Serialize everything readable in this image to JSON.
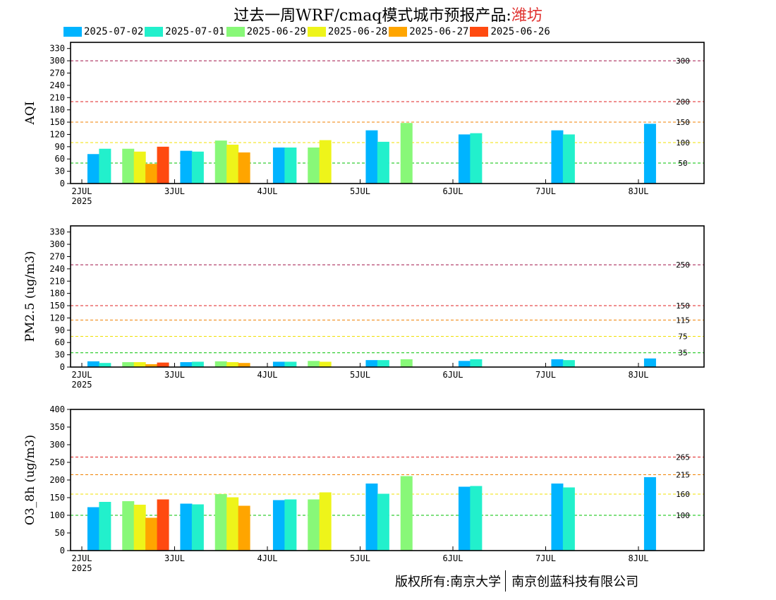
{
  "title": {
    "prefix": "过去一周WRF/cmaq模式城市预报产品:",
    "city": "潍坊"
  },
  "legend": [
    {
      "label": "2025-07-02",
      "color": "#00b4ff"
    },
    {
      "label": "2025-07-01",
      "color": "#22f0cc"
    },
    {
      "label": "2025-06-29",
      "color": "#88f878"
    },
    {
      "label": "2025-06-28",
      "color": "#eef41a"
    },
    {
      "label": "2025-06-27",
      "color": "#ffa500"
    },
    {
      "label": "2025-06-26",
      "color": "#ff4a10"
    }
  ],
  "copyright": {
    "left": "版权所有:南京大学",
    "right": "南京创蓝科技有限公司"
  },
  "chart_data": [
    {
      "type": "bar",
      "ylabel": "AQI",
      "ylim": [
        0,
        345
      ],
      "yticks": [
        0,
        30,
        60,
        90,
        120,
        150,
        180,
        210,
        240,
        270,
        300,
        330
      ],
      "categories": [
        "2JUL",
        "3JUL",
        "4JUL",
        "5JUL",
        "6JUL",
        "7JUL",
        "8JUL"
      ],
      "year_label": "2025",
      "thresholds": [
        {
          "value": 300,
          "label": "300",
          "color": "#a0144a"
        },
        {
          "value": 200,
          "label": "200",
          "color": "#e02020"
        },
        {
          "value": 150,
          "label": "150",
          "color": "#f08000"
        },
        {
          "value": 100,
          "label": "100",
          "color": "#f0e000"
        },
        {
          "value": 50,
          "label": "50",
          "color": "#00c000"
        }
      ],
      "bars": [
        {
          "series": "2025-07-02",
          "x": 0.125,
          "value": 72
        },
        {
          "series": "2025-07-01",
          "x": 0.25,
          "value": 85
        },
        {
          "series": "2025-06-29",
          "x": 0.5,
          "value": 85
        },
        {
          "series": "2025-06-28",
          "x": 0.625,
          "value": 78
        },
        {
          "series": "2025-06-27",
          "x": 0.75,
          "value": 48
        },
        {
          "series": "2025-06-26",
          "x": 0.875,
          "value": 90
        },
        {
          "series": "2025-07-02",
          "x": 1.125,
          "value": 80
        },
        {
          "series": "2025-07-01",
          "x": 1.25,
          "value": 78
        },
        {
          "series": "2025-06-29",
          "x": 1.5,
          "value": 105
        },
        {
          "series": "2025-06-28",
          "x": 1.625,
          "value": 95
        },
        {
          "series": "2025-06-27",
          "x": 1.75,
          "value": 76
        },
        {
          "series": "2025-07-02",
          "x": 2.125,
          "value": 88
        },
        {
          "series": "2025-07-01",
          "x": 2.25,
          "value": 88
        },
        {
          "series": "2025-06-29",
          "x": 2.5,
          "value": 88
        },
        {
          "series": "2025-06-28",
          "x": 2.625,
          "value": 106
        },
        {
          "series": "2025-07-02",
          "x": 3.125,
          "value": 130
        },
        {
          "series": "2025-07-01",
          "x": 3.25,
          "value": 102
        },
        {
          "series": "2025-06-29",
          "x": 3.5,
          "value": 148
        },
        {
          "series": "2025-07-02",
          "x": 4.125,
          "value": 120
        },
        {
          "series": "2025-07-01",
          "x": 4.25,
          "value": 123
        },
        {
          "series": "2025-07-02",
          "x": 5.125,
          "value": 130
        },
        {
          "series": "2025-07-01",
          "x": 5.25,
          "value": 120
        },
        {
          "series": "2025-07-02",
          "x": 6.125,
          "value": 146
        }
      ]
    },
    {
      "type": "bar",
      "ylabel": "PM2.5 (ug/m3)",
      "ylim": [
        0,
        345
      ],
      "yticks": [
        0,
        30,
        60,
        90,
        120,
        150,
        180,
        210,
        240,
        270,
        300,
        330
      ],
      "categories": [
        "2JUL",
        "3JUL",
        "4JUL",
        "5JUL",
        "6JUL",
        "7JUL",
        "8JUL"
      ],
      "year_label": "2025",
      "thresholds": [
        {
          "value": 250,
          "label": "250",
          "color": "#a0144a"
        },
        {
          "value": 150,
          "label": "150",
          "color": "#e02020"
        },
        {
          "value": 115,
          "label": "115",
          "color": "#f08000"
        },
        {
          "value": 75,
          "label": "75",
          "color": "#f0e000"
        },
        {
          "value": 35,
          "label": "35",
          "color": "#00c000"
        }
      ],
      "bars": [
        {
          "series": "2025-07-02",
          "x": 0.125,
          "value": 14
        },
        {
          "series": "2025-07-01",
          "x": 0.25,
          "value": 10
        },
        {
          "series": "2025-06-29",
          "x": 0.5,
          "value": 12
        },
        {
          "series": "2025-06-28",
          "x": 0.625,
          "value": 12
        },
        {
          "series": "2025-06-27",
          "x": 0.75,
          "value": 7
        },
        {
          "series": "2025-06-26",
          "x": 0.875,
          "value": 11
        },
        {
          "series": "2025-07-02",
          "x": 1.125,
          "value": 12
        },
        {
          "series": "2025-07-01",
          "x": 1.25,
          "value": 13
        },
        {
          "series": "2025-06-29",
          "x": 1.5,
          "value": 14
        },
        {
          "series": "2025-06-28",
          "x": 1.625,
          "value": 12
        },
        {
          "series": "2025-06-27",
          "x": 1.75,
          "value": 10
        },
        {
          "series": "2025-07-02",
          "x": 2.125,
          "value": 13
        },
        {
          "series": "2025-07-01",
          "x": 2.25,
          "value": 13
        },
        {
          "series": "2025-06-29",
          "x": 2.5,
          "value": 15
        },
        {
          "series": "2025-06-28",
          "x": 2.625,
          "value": 13
        },
        {
          "series": "2025-07-02",
          "x": 3.125,
          "value": 17
        },
        {
          "series": "2025-07-01",
          "x": 3.25,
          "value": 17
        },
        {
          "series": "2025-06-29",
          "x": 3.5,
          "value": 19
        },
        {
          "series": "2025-07-02",
          "x": 4.125,
          "value": 15
        },
        {
          "series": "2025-07-01",
          "x": 4.25,
          "value": 19
        },
        {
          "series": "2025-07-02",
          "x": 5.125,
          "value": 19
        },
        {
          "series": "2025-07-01",
          "x": 5.25,
          "value": 17
        },
        {
          "series": "2025-07-02",
          "x": 6.125,
          "value": 21
        }
      ]
    },
    {
      "type": "bar",
      "ylabel": "O3_8h (ug/m3)",
      "ylim": [
        0,
        400
      ],
      "yticks": [
        0,
        50,
        100,
        150,
        200,
        250,
        300,
        350,
        400
      ],
      "categories": [
        "2JUL",
        "3JUL",
        "4JUL",
        "5JUL",
        "6JUL",
        "7JUL",
        "8JUL"
      ],
      "year_label": "2025",
      "thresholds": [
        {
          "value": 265,
          "label": "265",
          "color": "#e02020"
        },
        {
          "value": 215,
          "label": "215",
          "color": "#f08000"
        },
        {
          "value": 160,
          "label": "160",
          "color": "#f0e000"
        },
        {
          "value": 100,
          "label": "100",
          "color": "#00c000"
        }
      ],
      "bars": [
        {
          "series": "2025-07-02",
          "x": 0.125,
          "value": 123
        },
        {
          "series": "2025-07-01",
          "x": 0.25,
          "value": 138
        },
        {
          "series": "2025-06-29",
          "x": 0.5,
          "value": 140
        },
        {
          "series": "2025-06-28",
          "x": 0.625,
          "value": 130
        },
        {
          "series": "2025-06-27",
          "x": 0.75,
          "value": 93
        },
        {
          "series": "2025-06-26",
          "x": 0.875,
          "value": 145
        },
        {
          "series": "2025-07-02",
          "x": 1.125,
          "value": 133
        },
        {
          "series": "2025-07-01",
          "x": 1.25,
          "value": 131
        },
        {
          "series": "2025-06-29",
          "x": 1.5,
          "value": 160
        },
        {
          "series": "2025-06-28",
          "x": 1.625,
          "value": 151
        },
        {
          "series": "2025-06-27",
          "x": 1.75,
          "value": 127
        },
        {
          "series": "2025-07-02",
          "x": 2.125,
          "value": 143
        },
        {
          "series": "2025-07-01",
          "x": 2.25,
          "value": 145
        },
        {
          "series": "2025-06-29",
          "x": 2.5,
          "value": 145
        },
        {
          "series": "2025-06-28",
          "x": 2.625,
          "value": 165
        },
        {
          "series": "2025-07-02",
          "x": 3.125,
          "value": 190
        },
        {
          "series": "2025-07-01",
          "x": 3.25,
          "value": 161
        },
        {
          "series": "2025-06-29",
          "x": 3.5,
          "value": 211
        },
        {
          "series": "2025-07-02",
          "x": 4.125,
          "value": 181
        },
        {
          "series": "2025-07-01",
          "x": 4.25,
          "value": 183
        },
        {
          "series": "2025-07-02",
          "x": 5.125,
          "value": 190
        },
        {
          "series": "2025-07-01",
          "x": 5.25,
          "value": 179
        },
        {
          "series": "2025-07-02",
          "x": 6.125,
          "value": 208
        }
      ]
    }
  ]
}
